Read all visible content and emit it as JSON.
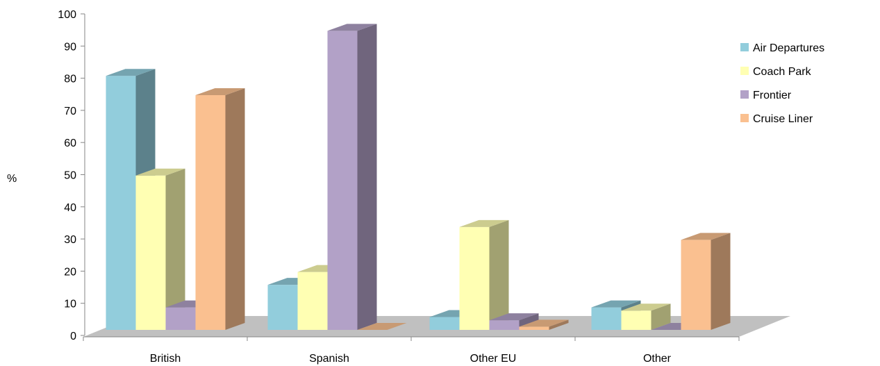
{
  "chart_data": {
    "type": "bar",
    "variant": "3d-clustered-column",
    "ylabel": "%",
    "ylim": [
      0,
      100
    ],
    "yticks": [
      0,
      10,
      20,
      30,
      40,
      50,
      60,
      70,
      80,
      90,
      100
    ],
    "categories": [
      "British",
      "Spanish",
      "Other EU",
      "Other"
    ],
    "series": [
      {
        "name": "Air Departures",
        "values": [
          79,
          14,
          4,
          7
        ],
        "color": "#92CDDC"
      },
      {
        "name": "Coach Park",
        "values": [
          48,
          18,
          32,
          6
        ],
        "color": "#FFFFB3"
      },
      {
        "name": "Frontier",
        "values": [
          7,
          93,
          3,
          0
        ],
        "color": "#B2A1C7"
      },
      {
        "name": "Cruise Liner",
        "values": [
          73,
          0,
          1,
          28
        ],
        "color": "#FAC090"
      }
    ],
    "legend_position": "right",
    "floor_color": "#C0C0C0",
    "grid": false
  }
}
